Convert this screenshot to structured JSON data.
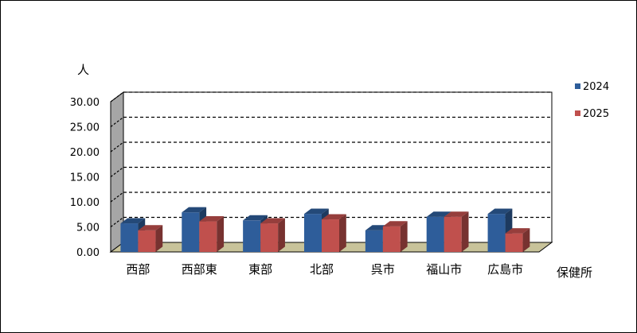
{
  "chart_data": {
    "type": "bar",
    "subtype": "3d-clustered-column",
    "ylabel": "人",
    "xlabel": "保健所",
    "categories": [
      "西部",
      "西部東",
      "東部",
      "北部",
      "呉市",
      "福山市",
      "広島市"
    ],
    "series": [
      {
        "name": "2024",
        "color": "#2E5D9A",
        "values": [
          5.7,
          7.9,
          6.3,
          7.6,
          4.3,
          7.0,
          7.6
        ]
      },
      {
        "name": "2025",
        "color": "#C0504D",
        "values": [
          4.3,
          6.1,
          5.7,
          6.5,
          5.1,
          7.0,
          3.7
        ]
      }
    ],
    "ylim": [
      0,
      30
    ],
    "yticks": [
      "0.00",
      "5.00",
      "10.00",
      "15.00",
      "20.00",
      "25.00",
      "30.00"
    ],
    "grid": true,
    "legend_position": "right"
  }
}
